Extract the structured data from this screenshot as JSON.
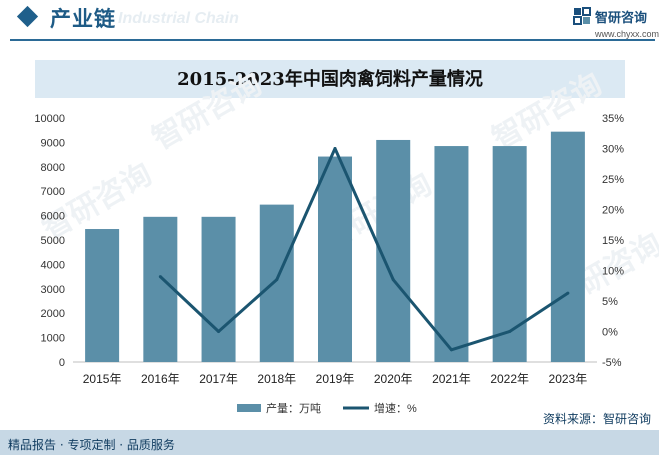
{
  "header": {
    "section_title": "产业链",
    "watermark_text": "Industrial Chain",
    "brand_name": "智研咨询",
    "brand_url": "www.chyxx.com"
  },
  "footer": {
    "slogan": "精品报告 · 专项定制 · 品质服务",
    "source": "资料来源：智研咨询"
  },
  "watermarks": [
    "智研咨询",
    "智研咨询",
    "智研咨询",
    "智研咨询",
    "智研咨询"
  ],
  "colors": {
    "bar": "#5b8fa8",
    "line": "#1b5570",
    "accent": "#1f5f8b"
  },
  "chart_data": {
    "type": "bar",
    "title": "2015-2023年中国肉禽饲料产量情况",
    "categories": [
      "2015年",
      "2016年",
      "2017年",
      "2018年",
      "2019年",
      "2020年",
      "2021年",
      "2022年",
      "2023年"
    ],
    "series": [
      {
        "name": "产量：万吨",
        "kind": "bar",
        "axis": "left",
        "values": [
          5450,
          5950,
          5950,
          6450,
          8420,
          9100,
          8850,
          8850,
          9440
        ]
      },
      {
        "name": "增速：%",
        "kind": "line",
        "axis": "right",
        "values": [
          null,
          9.0,
          0.0,
          8.5,
          30.0,
          8.5,
          -3.0,
          0.0,
          6.3
        ]
      }
    ],
    "ylim_left": [
      0,
      10000
    ],
    "yticks_left": [
      "10000",
      "9000",
      "8000",
      "7000",
      "6000",
      "5000",
      "4000",
      "3000",
      "2000",
      "1000",
      "0"
    ],
    "ylim_right": [
      -5,
      35
    ],
    "yticks_right": [
      "35%",
      "30%",
      "25%",
      "20%",
      "15%",
      "10%",
      "5%",
      "0%",
      "-5%"
    ],
    "legend": {
      "position": "bottom",
      "bar_label": "产量：万吨",
      "line_label": "增速：%"
    }
  }
}
